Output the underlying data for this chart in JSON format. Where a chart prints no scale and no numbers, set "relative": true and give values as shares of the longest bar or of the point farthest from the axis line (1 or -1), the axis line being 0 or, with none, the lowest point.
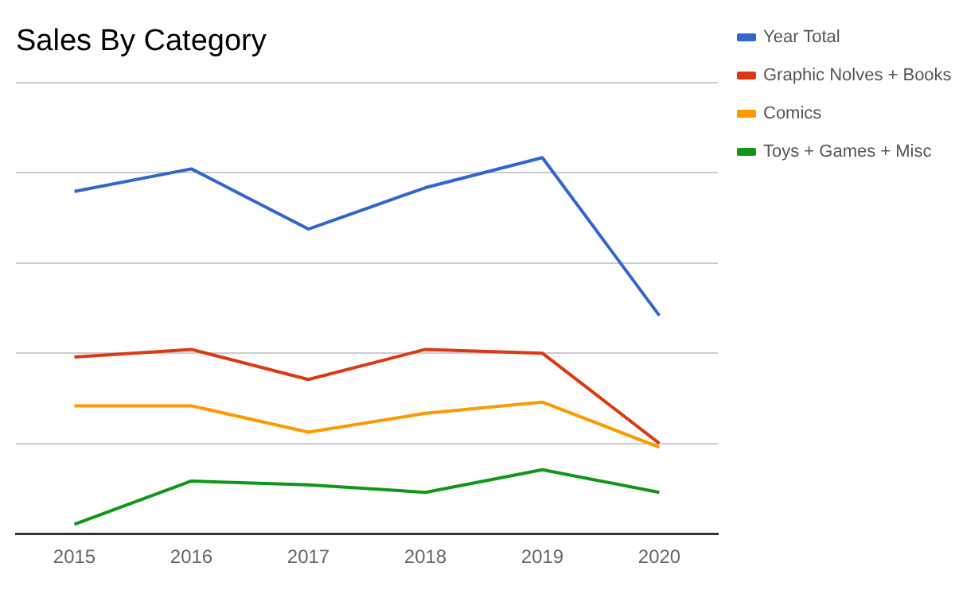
{
  "chart_data": {
    "type": "line",
    "title": "Sales By Category",
    "categories": [
      "2015",
      "2016",
      "2017",
      "2018",
      "2019",
      "2020"
    ],
    "relative": true,
    "grid": "y",
    "legend": "right",
    "marker": "none",
    "line_style": "solid",
    "series": [
      {
        "name": "Year Total",
        "color": "#3366cc",
        "values": [
          0.91,
          0.97,
          0.81,
          0.92,
          1,
          0.58
        ]
      },
      {
        "name": "Graphic Nolves + Books",
        "color": "#dc3912",
        "values": [
          0.47,
          0.49,
          0.41,
          0.49,
          0.48,
          0.24
        ]
      },
      {
        "name": "Comics",
        "color": "#ff9900",
        "values": [
          0.34,
          0.34,
          0.27,
          0.32,
          0.35,
          0.23
        ]
      },
      {
        "name": "Toys + Games + Misc",
        "color": "#109618",
        "values": [
          0.025,
          0.14,
          0.13,
          0.11,
          0.17,
          0.11
        ]
      }
    ]
  }
}
